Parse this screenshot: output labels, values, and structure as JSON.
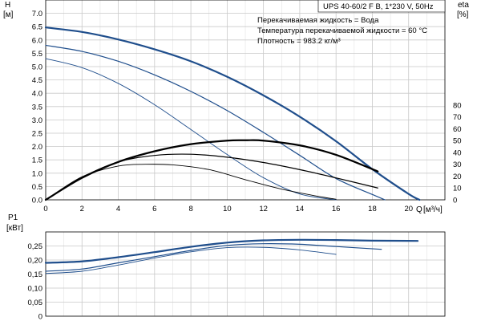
{
  "model_box": "UPS 40-60/2 F B, 1*230 V, 50Hz",
  "conditions": [
    "Перекачиваемая жидкость = Вода",
    "Температура перекачиваемой жидкости = 60 °C",
    "Плотность = 983.2 кг/м³"
  ],
  "colors": {
    "blue": "#1f4e8c",
    "black": "#000000",
    "grid": "#c9c9c9"
  },
  "chart_data": [
    {
      "type": "line",
      "panel": "head",
      "ylabel": "H",
      "yunit": "[м]",
      "y2label": "eta",
      "y2unit": "[%]",
      "xlabel": "Q",
      "xunit": "[м³/ч]",
      "xlim": [
        0,
        22
      ],
      "xticks": [
        "0",
        "2",
        "4",
        "6",
        "8",
        "10",
        "12",
        "14",
        "16",
        "18",
        "20"
      ],
      "xtick_values": [
        0,
        2,
        4,
        6,
        8,
        10,
        12,
        14,
        16,
        18,
        20
      ],
      "ylim": [
        0,
        7.5
      ],
      "yticks": [
        "0.0",
        "0.5",
        "1.0",
        "1.5",
        "2.0",
        "2.5",
        "3.0",
        "3.5",
        "4.0",
        "4.5",
        "5.0",
        "5.5",
        "6.0",
        "6.5",
        "7.0"
      ],
      "ytick_values": [
        0,
        0.5,
        1,
        1.5,
        2,
        2.5,
        3,
        3.5,
        4,
        4.5,
        5,
        5.5,
        6,
        6.5,
        7
      ],
      "y2lim": [
        0,
        168.75
      ],
      "y2ticks": [
        "0",
        "10",
        "20",
        "30",
        "40",
        "50",
        "60",
        "70",
        "80"
      ],
      "y2tick_values": [
        0,
        10,
        20,
        30,
        40,
        50,
        60,
        70,
        80
      ],
      "grid": true,
      "series": [
        {
          "axis": "left",
          "color": "blue",
          "width": 2.2,
          "x": [
            0,
            2,
            4,
            6,
            8,
            10,
            12,
            14,
            16,
            18,
            20,
            20.6
          ],
          "y": [
            6.47,
            6.3,
            6.02,
            5.65,
            5.2,
            4.62,
            3.92,
            3.12,
            2.2,
            1.15,
            0.22,
            0.0
          ]
        },
        {
          "axis": "left",
          "color": "blue",
          "width": 1.2,
          "x": [
            0,
            2,
            4,
            6,
            8,
            10,
            12,
            14,
            16,
            18,
            18.7
          ],
          "y": [
            5.8,
            5.57,
            5.2,
            4.69,
            4.07,
            3.35,
            2.53,
            1.67,
            0.8,
            0.2,
            0.0
          ]
        },
        {
          "axis": "left",
          "color": "blue",
          "width": 0.9,
          "x": [
            0,
            2,
            4,
            6,
            8,
            10,
            12,
            14,
            16
          ],
          "y": [
            5.3,
            4.96,
            4.37,
            3.57,
            2.64,
            1.7,
            0.83,
            0.22,
            0.0
          ]
        },
        {
          "axis": "right",
          "color": "black",
          "width": 2.2,
          "x": [
            0,
            2,
            4,
            6,
            8,
            10,
            11,
            12,
            14,
            16,
            18.3
          ],
          "y": [
            0,
            18.5,
            32,
            41,
            47,
            50,
            50.3,
            50,
            46,
            38,
            24
          ]
        },
        {
          "axis": "right",
          "color": "black",
          "width": 1.2,
          "x": [
            0,
            2,
            4,
            6,
            8,
            10,
            12,
            14,
            16,
            18.3
          ],
          "y": [
            0,
            19,
            32,
            37.5,
            38.5,
            36,
            31.5,
            25.5,
            18.5,
            10
          ]
        },
        {
          "axis": "right",
          "color": "black",
          "width": 0.9,
          "x": [
            0,
            2,
            4,
            5.5,
            7,
            9,
            11,
            13,
            15,
            16
          ],
          "y": [
            0,
            19.5,
            28.5,
            30,
            29.5,
            25.5,
            17,
            9,
            3,
            0.5
          ]
        }
      ]
    },
    {
      "type": "line",
      "panel": "power",
      "ylabel": "P1",
      "yunit": "[кВт]",
      "xlim": [
        0,
        22
      ],
      "ylim": [
        0,
        0.3
      ],
      "yticks": [
        "0",
        "0,05",
        "0,10",
        "0,15",
        "0,20",
        "0,25"
      ],
      "ytick_values": [
        0,
        0.05,
        0.1,
        0.15,
        0.2,
        0.25
      ],
      "grid": true,
      "series": [
        {
          "color": "blue",
          "width": 2.2,
          "x": [
            0,
            2,
            4,
            6,
            8,
            10,
            12,
            14,
            16,
            18,
            20.5
          ],
          "y": [
            0.19,
            0.195,
            0.21,
            0.228,
            0.247,
            0.262,
            0.27,
            0.272,
            0.271,
            0.269,
            0.268
          ]
        },
        {
          "color": "blue",
          "width": 1.2,
          "x": [
            0,
            2,
            4,
            6,
            8,
            10,
            12,
            14,
            16,
            18.5
          ],
          "y": [
            0.16,
            0.168,
            0.19,
            0.212,
            0.234,
            0.252,
            0.258,
            0.256,
            0.248,
            0.238
          ]
        },
        {
          "color": "blue",
          "width": 0.9,
          "x": [
            0,
            2,
            4,
            6,
            8,
            10,
            12,
            14,
            16
          ],
          "y": [
            0.152,
            0.16,
            0.182,
            0.207,
            0.229,
            0.244,
            0.245,
            0.236,
            0.22
          ]
        }
      ]
    }
  ]
}
